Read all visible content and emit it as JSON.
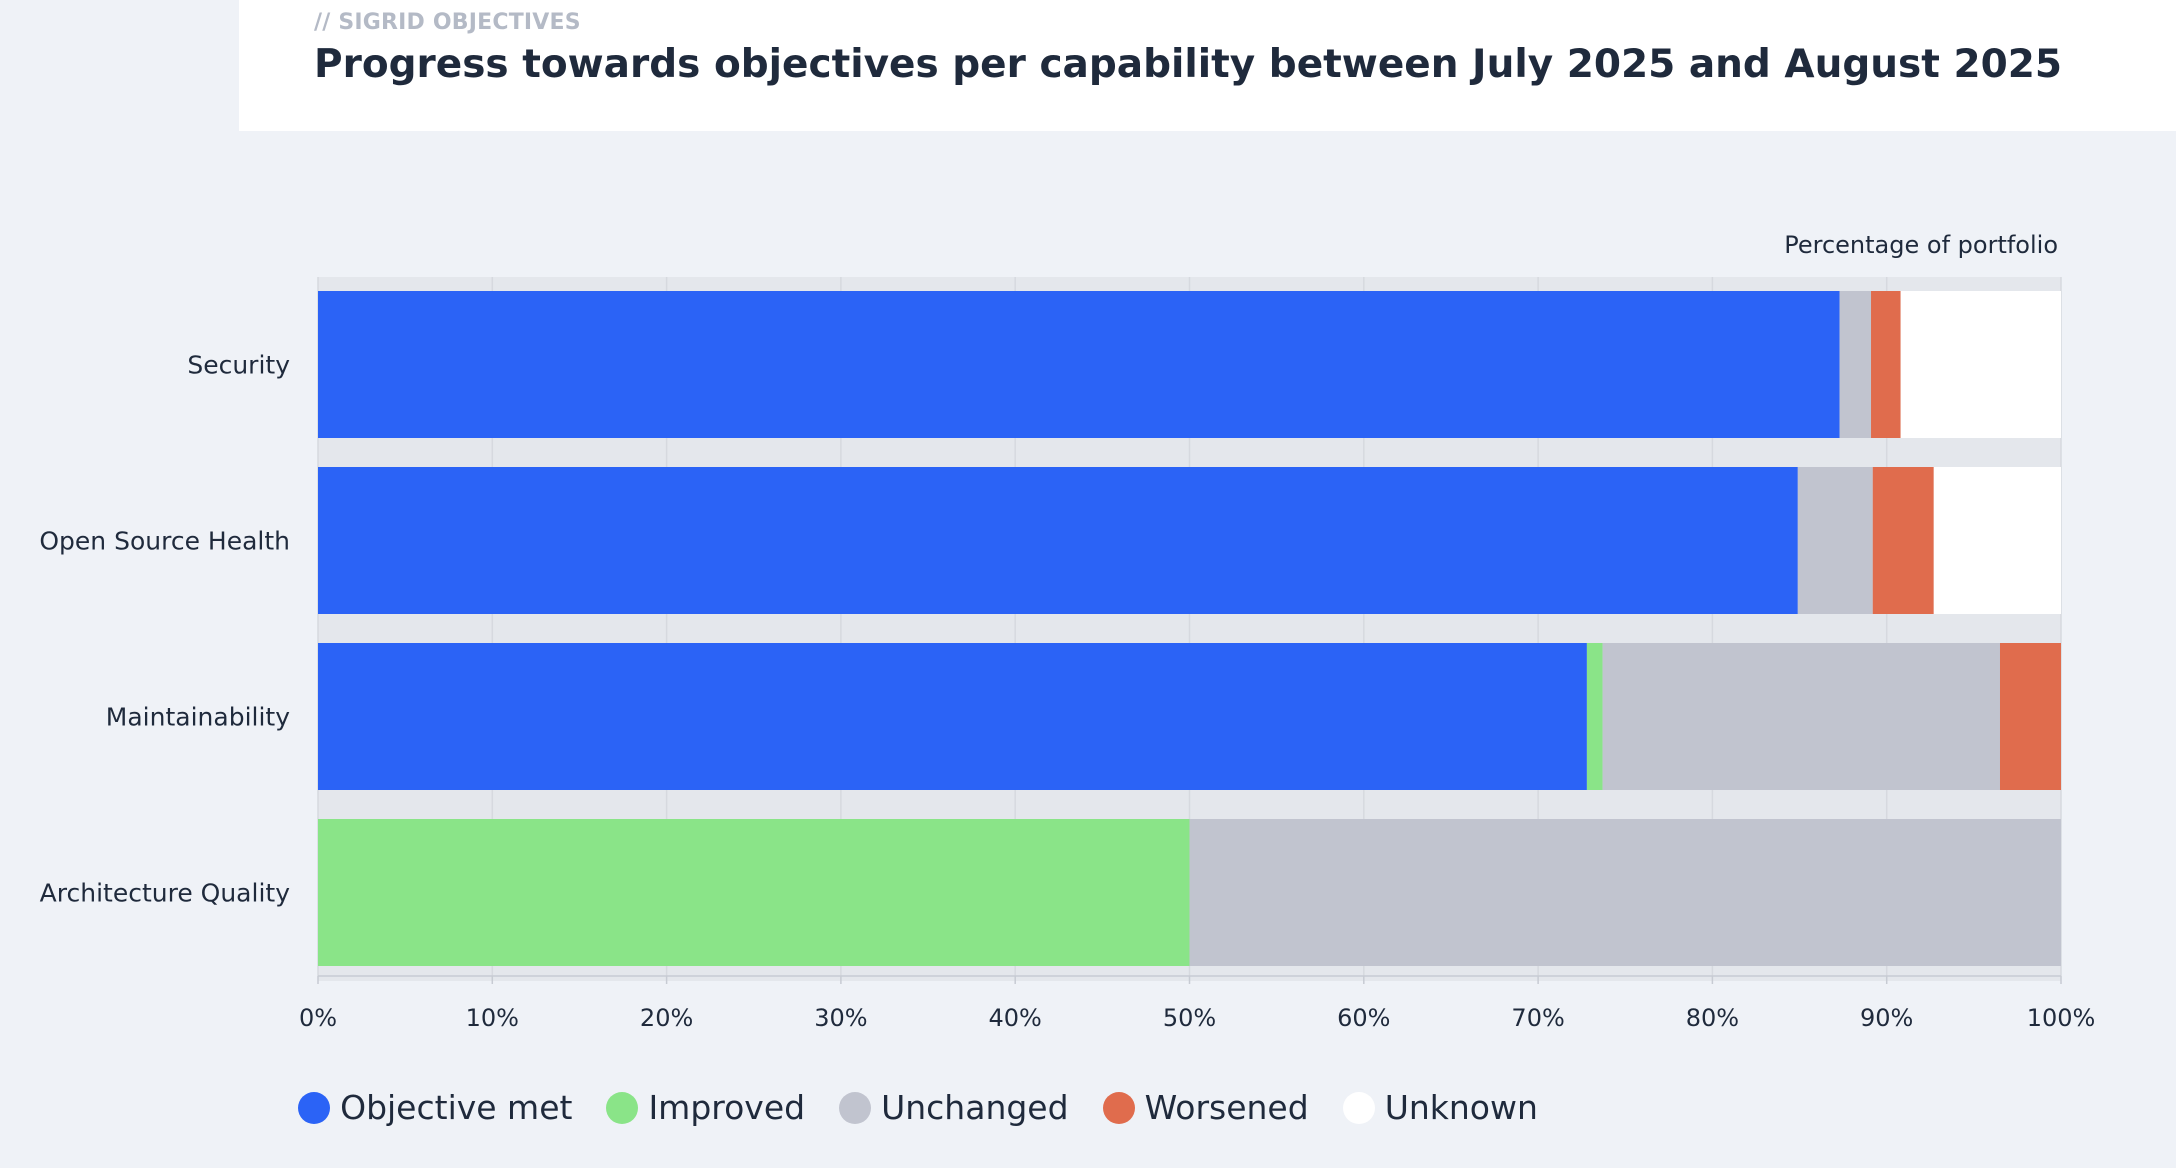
{
  "header": {
    "eyebrow": "// SIGRID OBJECTIVES",
    "title": "Progress towards objectives per capability between July 2025 and August 2025"
  },
  "chart_data": {
    "type": "bar",
    "orientation": "horizontal",
    "stacked": true,
    "axis_caption": "Percentage of portfolio",
    "categories": [
      "Security",
      "Open Source Health",
      "Maintainability",
      "Architecture Quality"
    ],
    "series": [
      {
        "name": "Objective met",
        "color": "#2b63f6",
        "values": [
          87.3,
          84.9,
          72.8,
          0
        ]
      },
      {
        "name": "Improved",
        "color": "#8ae488",
        "values": [
          0,
          0,
          0.9,
          50.0
        ]
      },
      {
        "name": "Unchanged",
        "color": "#c1c4cf",
        "values": [
          1.8,
          4.3,
          22.8,
          50.0
        ]
      },
      {
        "name": "Worsened",
        "color": "#e06c4d",
        "values": [
          1.7,
          3.5,
          3.5,
          0
        ]
      },
      {
        "name": "Unknown",
        "color": "#ffffff",
        "values": [
          9.2,
          7.3,
          0,
          0
        ]
      }
    ],
    "xlim": [
      0,
      100
    ],
    "x_ticks": [
      "0%",
      "10%",
      "20%",
      "30%",
      "40%",
      "50%",
      "60%",
      "70%",
      "80%",
      "90%",
      "100%"
    ],
    "grid": true,
    "legend_position": "bottom"
  }
}
